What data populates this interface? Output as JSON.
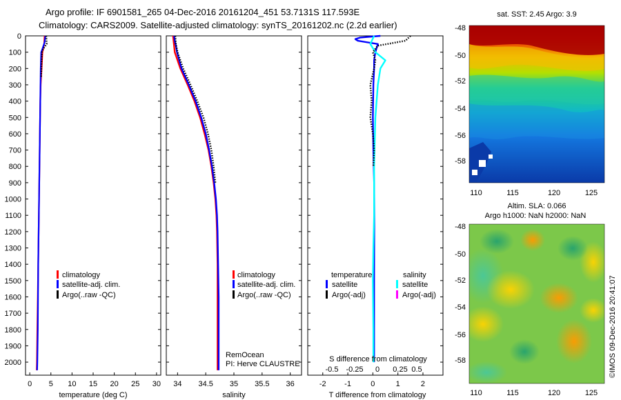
{
  "header": {
    "line1": "Argo profile: IF 6901581_265 04-Dec-2016 20161204_451 53.7131S 117.593E",
    "line2": "Climatology: CARS2009. Satellite-adjusted climatology: synTS_20161202.nc (2.2d earlier)"
  },
  "colors": {
    "climatology": "#ff0000",
    "satellite": "#0000ff",
    "argo": "#000000",
    "sal_satellite": "#00ffff",
    "sal_argo": "#ff00ff"
  },
  "chart_data": [
    {
      "type": "line",
      "panel": "temperature",
      "xlabel": "temperature (deg C)",
      "xlim": [
        -1,
        31
      ],
      "xticks": [
        0,
        5,
        10,
        15,
        20,
        25,
        30
      ],
      "ylim": [
        2080,
        0
      ],
      "yticks": [
        0,
        100,
        200,
        300,
        400,
        500,
        600,
        700,
        800,
        900,
        1000,
        1100,
        1200,
        1300,
        1400,
        1500,
        1600,
        1700,
        1800,
        1900,
        2000
      ],
      "legend": [
        "climatology",
        "satellite-adj. clim.",
        "Argo(..raw -QC)"
      ],
      "series": [
        {
          "name": "climatology",
          "depth": [
            0,
            50,
            100,
            200,
            300,
            400,
            600,
            800,
            1000,
            1200,
            1400,
            1600,
            1800,
            2000,
            2050
          ],
          "values": [
            3.5,
            3.4,
            3.0,
            2.8,
            2.6,
            2.5,
            2.4,
            2.3,
            2.2,
            2.1,
            2.0,
            1.9,
            1.8,
            1.7,
            1.65
          ]
        },
        {
          "name": "satellite-adj. clim.",
          "depth": [
            0,
            40,
            80,
            100,
            200,
            300,
            400,
            600,
            800,
            1000,
            1200,
            1400,
            1600,
            1800,
            2000,
            2050
          ],
          "values": [
            3.7,
            3.5,
            3.0,
            2.7,
            2.6,
            2.55,
            2.5,
            2.4,
            2.3,
            2.2,
            2.1,
            2.0,
            1.95,
            1.9,
            1.8,
            1.75
          ]
        },
        {
          "name": "Argo(..raw -QC)",
          "depth": [
            0,
            50,
            80,
            100,
            150,
            200,
            250
          ],
          "values": [
            3.9,
            4.0,
            3.2,
            2.9,
            2.8,
            2.75,
            2.7
          ]
        }
      ]
    },
    {
      "type": "line",
      "panel": "salinity",
      "xlabel": "salinity",
      "xlim": [
        33.8,
        36.2
      ],
      "xticks": [
        34,
        34.5,
        35,
        35.5,
        36
      ],
      "ylim": [
        2080,
        0
      ],
      "legend": [
        "climatology",
        "satellite-adj. clim.",
        "Argo(..raw -QC)"
      ],
      "series": [
        {
          "name": "climatology",
          "depth": [
            0,
            100,
            200,
            300,
            400,
            500,
            600,
            700,
            800,
            900,
            1000,
            1100,
            1200,
            1400,
            1600,
            1800,
            2000,
            2050
          ],
          "values": [
            33.92,
            33.95,
            34.05,
            34.18,
            34.3,
            34.4,
            34.48,
            34.55,
            34.6,
            34.64,
            34.67,
            34.69,
            34.7,
            34.71,
            34.71,
            34.71,
            34.71,
            34.71
          ]
        },
        {
          "name": "satellite-adj. clim.",
          "depth": [
            0,
            30,
            60,
            100,
            200,
            300,
            400,
            500,
            600,
            700,
            800,
            900,
            1000,
            1100,
            1200,
            1400,
            1600,
            1800,
            2000,
            2050
          ],
          "values": [
            33.94,
            33.95,
            33.97,
            33.99,
            34.07,
            34.2,
            34.32,
            34.42,
            34.5,
            34.56,
            34.61,
            34.65,
            34.68,
            34.7,
            34.71,
            34.72,
            34.73,
            34.73,
            34.73,
            34.73
          ]
        },
        {
          "name": "Argo(..raw -QC)",
          "depth": [
            0,
            50,
            100,
            200,
            300,
            400,
            500,
            600,
            700,
            800,
            900
          ],
          "values": [
            33.96,
            33.97,
            34.0,
            34.1,
            34.23,
            34.35,
            34.46,
            34.54,
            34.6,
            34.64,
            34.67
          ]
        }
      ],
      "annotation": {
        "line1": "RemOcean",
        "line2": "PI: Herve CLAUSTRE"
      }
    },
    {
      "type": "line",
      "panel": "difference",
      "xlabel": "T difference from climatology",
      "top_label": "S difference from climatology",
      "xlim": [
        -2.6,
        2.8
      ],
      "xticks": [
        -2,
        -1,
        0,
        1,
        2
      ],
      "xtick_labels": [
        "-2",
        "-1",
        "0",
        "1",
        "2"
      ],
      "top_ticks": [
        "-0.5",
        "-0.25",
        "0",
        "0.25",
        "0.5"
      ],
      "ylim": [
        2080,
        0
      ],
      "legend": {
        "temperature_title": "temperature",
        "salinity_title": "salinity",
        "items": [
          "satellite",
          "Argo(-adj)",
          "satellite",
          "Argo(-adj)"
        ]
      },
      "series": [
        {
          "name": "temperature satellite",
          "depth": [
            0,
            10,
            20,
            30,
            40,
            50,
            100,
            150,
            200,
            300,
            500,
            700,
            900,
            1100,
            1500,
            2000
          ],
          "values": [
            0.3,
            -0.5,
            -0.7,
            -0.6,
            -0.2,
            0.2,
            0.1,
            0.05,
            0.05,
            0.02,
            0.0,
            0.02,
            0.05,
            0.06,
            0.05,
            0.05
          ]
        },
        {
          "name": "salinity satellite",
          "depth": [
            0,
            50,
            100,
            150,
            200,
            300,
            500,
            800,
            1100,
            1300,
            1500,
            1800,
            2000
          ],
          "values": [
            0.05,
            -0.1,
            0.1,
            0.5,
            0.3,
            0.2,
            0.1,
            0.05,
            0.05,
            0.02,
            0.0,
            0.02,
            0.02
          ]
        },
        {
          "name": "temperature Argo(-adj)",
          "depth": [
            0,
            30,
            60,
            100,
            150,
            200,
            300,
            400,
            500,
            600,
            700,
            800
          ],
          "values": [
            1.5,
            1.3,
            0.2,
            0.0,
            0.1,
            0.05,
            -0.1,
            -0.05,
            -0.1,
            0.0,
            0.05,
            0.02
          ]
        }
      ]
    },
    {
      "type": "heatmap",
      "panel": "sst_map",
      "title": "sat. SST: 2.45 Argo: 3.9",
      "xticks": [
        "110",
        "115",
        "120",
        "125"
      ],
      "yticks": [
        "-48",
        "-50",
        "-52",
        "-54",
        "-56",
        "-58"
      ]
    },
    {
      "type": "heatmap",
      "panel": "sla_map",
      "title_line1": "Altim. SLA: 0.066",
      "title_line2": "Argo h1000: NaN h2000: NaN",
      "xticks": [
        "110",
        "115",
        "120",
        "125"
      ],
      "yticks": [
        "-48",
        "-50",
        "-52",
        "-54",
        "-56",
        "-58"
      ]
    }
  ],
  "side_stamp": "©IMOS 09-Dec-2016 20:41:07"
}
